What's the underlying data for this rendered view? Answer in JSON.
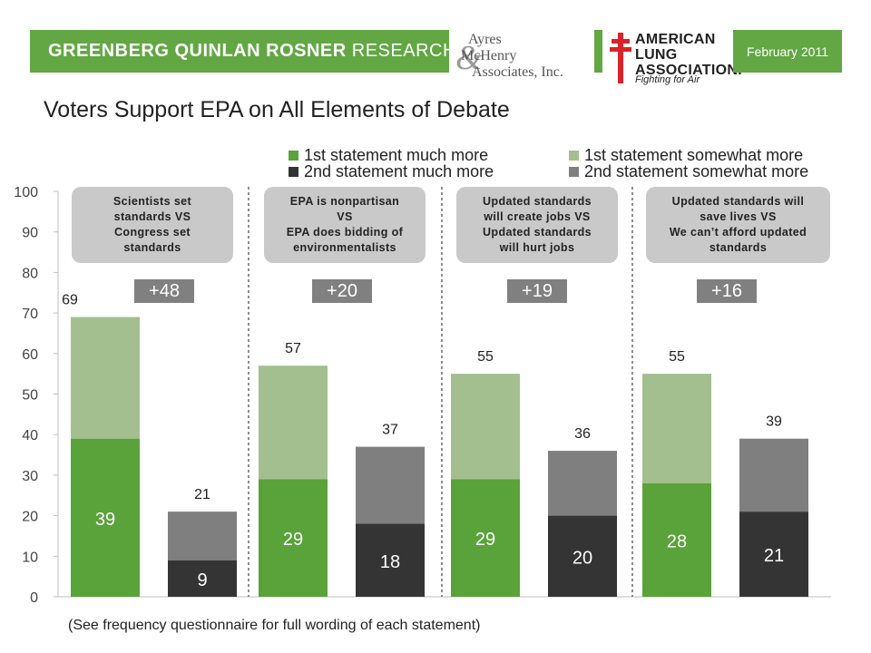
{
  "header": {
    "gqr_bold": "GREENBERG QUINLAN ROSNER",
    "gqr_light": " RESEARCH",
    "ayres_line1": "Ayres",
    "ayres_line2": "McHenry",
    "ayres_line3": "Associates, Inc.",
    "ala_line1": "AMERICAN",
    "ala_line2": "LUNG",
    "ala_line3": "ASSOCIATION.",
    "ala_tagline": "Fighting for Air",
    "date": "February 2011"
  },
  "title": "Voters Support EPA on All Elements of Debate",
  "legend": {
    "first_much": "1st statement much more",
    "first_somewhat": "1st statement somewhat more",
    "second_much": "2nd statement much more",
    "second_somewhat": "2nd statement somewhat more"
  },
  "colors": {
    "first_much": "#5aa23a",
    "first_somewhat": "#a3bf8f",
    "second_much": "#343434",
    "second_somewhat": "#7f7f7f",
    "brand_green": "#62a744"
  },
  "groups": [
    {
      "statement": [
        "Scientists set",
        "standards VS",
        "Congress set",
        "standards"
      ],
      "margin": "+48"
    },
    {
      "statement": [
        "EPA is nonpartisan",
        "VS",
        "EPA does bidding of",
        "environmentalists"
      ],
      "margin": "+20"
    },
    {
      "statement": [
        "Updated standards",
        "will create jobs VS",
        "Updated standards",
        "will hurt jobs"
      ],
      "margin": "+19"
    },
    {
      "statement": [
        "Updated standards will",
        "save lives VS",
        "We can’t afford updated",
        "standards"
      ],
      "margin": "+16"
    }
  ],
  "footnote": "(See frequency questionnaire for full wording of each statement)",
  "chart_data": {
    "type": "bar",
    "stacked": true,
    "title": "Voters Support EPA on All Elements of Debate",
    "ylim": [
      0,
      100
    ],
    "yticks": [
      0,
      10,
      20,
      30,
      40,
      50,
      60,
      70,
      80,
      90,
      100
    ],
    "gridlines": false,
    "legend_position": "top",
    "bars": [
      {
        "group": 0,
        "statement": "1st",
        "much": 39,
        "total": 69
      },
      {
        "group": 0,
        "statement": "2nd",
        "much": 9,
        "total": 21
      },
      {
        "group": 1,
        "statement": "1st",
        "much": 29,
        "total": 57
      },
      {
        "group": 1,
        "statement": "2nd",
        "much": 18,
        "total": 37
      },
      {
        "group": 2,
        "statement": "1st",
        "much": 29,
        "total": 55
      },
      {
        "group": 2,
        "statement": "2nd",
        "much": 20,
        "total": 36
      },
      {
        "group": 3,
        "statement": "1st",
        "much": 28,
        "total": 55
      },
      {
        "group": 3,
        "statement": "2nd",
        "much": 21,
        "total": 39
      }
    ]
  }
}
